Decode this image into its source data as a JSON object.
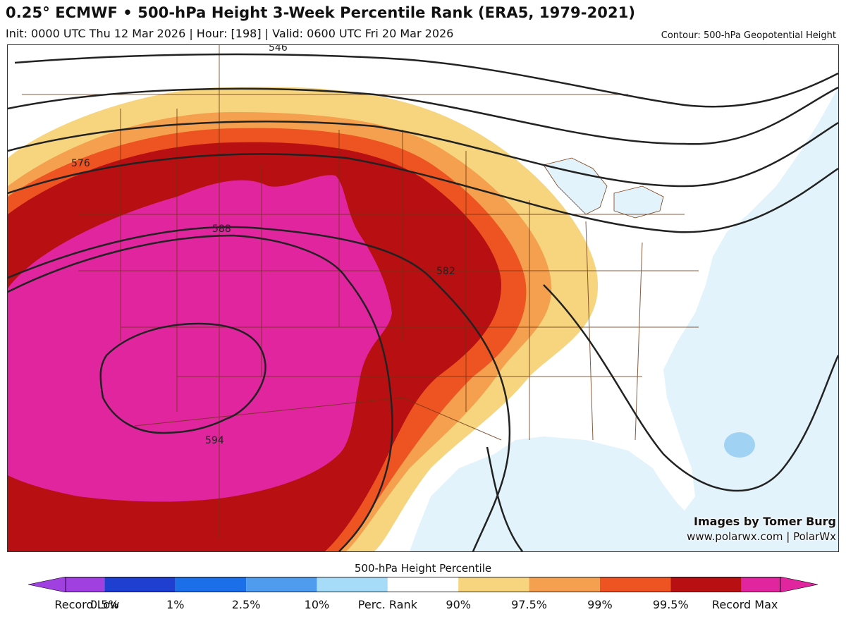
{
  "header": {
    "title": "0.25° ECMWF • 500-hPa Height 3-Week Percentile Rank (ERA5, 1979-2021)",
    "subtitle": "Init: 0000 UTC Thu 12 Mar 2026 | Hour: [198] | Valid: 0600 UTC Fri 20 Mar 2026",
    "contour_note": "Contour: 500-hPa Geopotential Height"
  },
  "map": {
    "contour_labels": [
      "576",
      "588",
      "582",
      "594",
      "546"
    ],
    "credit_line1": "Images by Tomer Burg",
    "credit_line2": "www.polarwx.com | PolarWx"
  },
  "colorbar": {
    "title": "500-hPa Height Percentile",
    "labels": [
      "Record Low",
      "0.5%",
      "1%",
      "2.5%",
      "10%",
      "Perc. Rank",
      "90%",
      "97.5%",
      "99%",
      "99.5%",
      "Record Max"
    ],
    "colors": [
      "#a040e0",
      "#1e3fcf",
      "#1b6fe8",
      "#4f9bee",
      "#a6dcf7",
      "#ffffff",
      "#f7d57e",
      "#f5a04e",
      "#ee5322",
      "#b80f12",
      "#e0259f"
    ]
  }
}
